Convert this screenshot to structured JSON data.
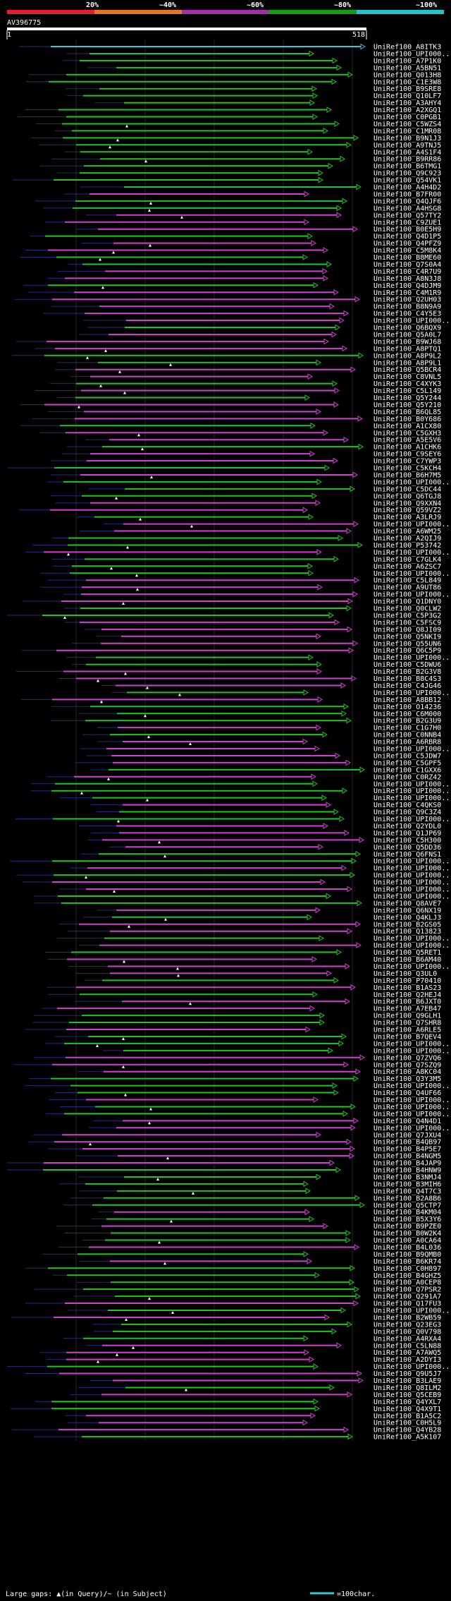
{
  "colors": {
    "background": "#000000",
    "query": "#ffffff",
    "band_red": "#e81e2c",
    "band_orange": "#e8761a",
    "band_purple": "#a32ea8",
    "band_green": "#10a010",
    "band_cyan": "#21c4cc",
    "hit_cyan": "#38c8d8",
    "hit_green": "#22c422",
    "hit_magenta": "#d040d0",
    "gap_line": "#2a2a7a",
    "grid": "#444444"
  },
  "legend": {
    "bands": [
      "20%",
      "~40%",
      "~60%",
      "~80%",
      "~100%"
    ]
  },
  "query": {
    "name": "AV396775",
    "start_label": "1",
    "end_label": "518",
    "length": 518
  },
  "footer": {
    "gaps_text": "Large gaps: ▲(in Query)/~ (in Subject)",
    "scale_text": "=100char."
  },
  "hits": [
    "UniRef100_A8ITK3",
    "UniRef100_UPI000...",
    "UniRef100_A7P1K0",
    "UniRef100_A5BN51",
    "UniRef100_Q013H8",
    "UniRef100_C1E3W8",
    "UniRef100_B9SRE8",
    "UniRef100_Q10LF7",
    "UniRef100_A3AHY4",
    "UniRef100_A2XGQ1",
    "UniRef100_C0PGB1",
    "UniRef100_C5WZS4",
    "UniRef100_C1MR08",
    "UniRef100_B9N1J3",
    "UniRef100_A9TNJ5",
    "UniRef100_A4S1F4",
    "UniRef100_B9RR86",
    "UniRef100_B6TMG1",
    "UniRef100_Q9C923",
    "UniRef100_Q54VK1",
    "UniRef100_A4H4D2",
    "UniRef100_B7FR00",
    "UniRef100_Q4QJF6",
    "UniRef100_A4HSG8",
    "UniRef100_Q57TY2",
    "UniRef100_C9ZUE1",
    "UniRef100_B0E5H9",
    "UniRef100_Q4D1P5",
    "UniRef100_Q4PFZ9",
    "UniRef100_C5M8K4",
    "UniRef100_B8ME60",
    "UniRef100_Q7S0A4",
    "UniRef100_C4R7U9",
    "UniRef100_A8N3J8",
    "UniRef100_Q4DJM9",
    "UniRef100_C4M1R9",
    "UniRef100_Q2UH03",
    "UniRef100_B8N9A9",
    "UniRef100_C4Y5E3",
    "UniRef100_UPI000...",
    "UniRef100_Q6BQX9",
    "UniRef100_Q5A0L7",
    "UniRef100_B9WJ68",
    "UniRef100_A8PTQ1",
    "UniRef100_A8P9L2",
    "UniRef100_A8P9L1",
    "UniRef100_Q5BCR4",
    "UniRef100_C8VNL5",
    "UniRef100_C4XYK3",
    "UniRef100_C5L149",
    "UniRef100_Q5Y244",
    "UniRef100_Q5Y210",
    "UniRef100_B6QL85",
    "UniRef100_B0Y686",
    "UniRef100_A1CX80",
    "UniRef100_C5GXH3",
    "UniRef100_A5E5V6",
    "UniRef100_A1CHK6",
    "UniRef100_C9SEY6",
    "UniRef100_C7YWP3",
    "UniRef100_C5KCH4",
    "UniRef100_B6H7M5",
    "UniRef100_UPI000...",
    "UniRef100_C5DC44",
    "UniRef100_Q6TGJ8",
    "UniRef100_Q9XXN4",
    "UniRef100_Q59VZ2",
    "UniRef100_A3LRJ9",
    "UniRef100_UPI000...",
    "UniRef100_A6WM25",
    "UniRef100_A2QIJ9",
    "UniRef100_P53742",
    "UniRef100_UPI000...",
    "UniRef100_C7GLK4",
    "UniRef100_A6ZSC7",
    "UniRef100_UPI000...",
    "UniRef100_C5L849",
    "UniRef100_A9UT86",
    "UniRef100_UPI000...",
    "UniRef100_Q1DNY0",
    "UniRef100_Q0CLW2",
    "UniRef100_C5P3G2",
    "UniRef100_C5FSC9",
    "UniRef100_Q8JI09",
    "UniRef100_Q5NKI9",
    "UniRef100_Q55UN6",
    "UniRef100_Q6C5P9",
    "UniRef100_UPI000...",
    "UniRef100_C5DWU6",
    "UniRef100_B2G3V8",
    "UniRef100_B8C4S3",
    "UniRef100_C4JG46",
    "UniRef100_UPI000...",
    "UniRef100_A8BB12",
    "UniRef100_O14236",
    "UniRef100_C6M000",
    "UniRef100_B2G3U9",
    "UniRef100_C1G7H0",
    "UniRef100_C0NNB4",
    "UniRef100_A6RBR8",
    "UniRef100_UPI000...",
    "UniRef100_C5JDW7",
    "UniRef100_C5GPF5",
    "UniRef100_C1GXX6",
    "UniRef100_C0RZ42",
    "UniRef100_UPI000...",
    "UniRef100_UPI000...",
    "UniRef100_UPI000...",
    "UniRef100_C4QKS0",
    "UniRef100_Q9C3Z4",
    "UniRef100_UPI000...",
    "UniRef100_Q2YDL0",
    "UniRef100_Q1JP69",
    "UniRef100_C5H300",
    "UniRef100_Q5DD36",
    "UniRef100_Q6FNS1",
    "UniRef100_UPI000...",
    "UniRef100_UPI000...",
    "UniRef100_UPI000...",
    "UniRef100_UPI000...",
    "UniRef100_UPI000...",
    "UniRef100_UPI000...",
    "UniRef100_Q8AVE7",
    "UniRef100_Q6NX19",
    "UniRef100_Q4KLJ3",
    "UniRef100_B2GS05",
    "UniRef100_Q13823",
    "UniRef100_UPI000...",
    "UniRef100_UPI000...",
    "UniRef100_Q5RET1",
    "UniRef100_B6AM40",
    "UniRef100_UPI000...",
    "UniRef100_Q3UL0",
    "UniRef100_P70410",
    "UniRef100_B1AS23",
    "UniRef100_Q2HEJ4",
    "UniRef100_B6JXT0",
    "UniRef100_A7EB47",
    "UniRef100_Q9GLH1",
    "UniRef100_Q7SHR8",
    "UniRef100_A6RLE5",
    "UniRef100_B7QEV4",
    "UniRef100_UPI000...",
    "UniRef100_UPI000...",
    "UniRef100_Q7ZVQ6",
    "UniRef100_Q7SZQ9",
    "UniRef100_A8KC04",
    "UniRef100_Q3Y3M5",
    "UniRef100_UPI000...",
    "UniRef100_Q4UF66",
    "UniRef100_UPI000...",
    "UniRef100_UPI000...",
    "UniRef100_UPI000...",
    "UniRef100_Q4N4D1",
    "UniRef100_UPI000...",
    "UniRef100_Q7JXU4",
    "UniRef100_B4QB97",
    "UniRef100_B4P5E7",
    "UniRef100_B4NGM5",
    "UniRef100_B4JAP9",
    "UniRef100_B4HNW9",
    "UniRef100_B3NMJ4",
    "UniRef100_B3MIH6",
    "UniRef100_Q4T7C3",
    "UniRef100_B2A8B6",
    "UniRef100_Q5CTP7",
    "UniRef100_B4KM04",
    "UniRef100_B5X3Y6",
    "UniRef100_B9PZE0",
    "UniRef100_B0W2K4",
    "UniRef100_A0CA64",
    "UniRef100_B4L036",
    "UniRef100_B9QMB0",
    "UniRef100_B6KR74",
    "UniRef100_C0H897",
    "UniRef100_B4GHZ5",
    "UniRef100_A0CEP8",
    "UniRef100_Q7PSR2",
    "UniRef100_Q291A7",
    "UniRef100_Q17FU3",
    "UniRef100_UPI000...",
    "UniRef100_B2WB59",
    "UniRef100_Q23EG3",
    "UniRef100_Q0V798",
    "UniRef100_A4RXA4",
    "UniRef100_C5LN88",
    "UniRef100_A7AWQ5",
    "UniRef100_A2DYI3",
    "UniRef100_UPI000...",
    "UniRef100_Q9U5J7",
    "UniRef100_B3LAE9",
    "UniRef100_Q8ILM2",
    "UniRef100_Q5CEB9",
    "UniRef100_Q4YXL7",
    "UniRef100_Q4X9T1",
    "UniRef100_B1A5C2",
    "UniRef100_C0H5L9",
    "UniRef100_Q4YB28",
    "UniRef100_A5K107"
  ]
}
